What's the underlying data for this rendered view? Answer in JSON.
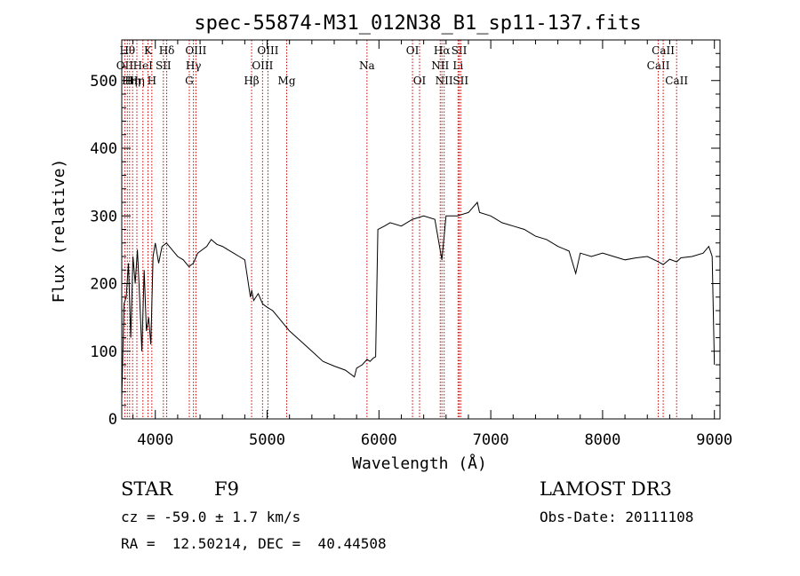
{
  "chart_data": {
    "type": "line",
    "title": "spec-55874-M31_012N38_B1_sp11-137.fits",
    "xlabel": "Wavelength (Å)",
    "ylabel": "Flux (relative)",
    "xlim": [
      3700,
      9050
    ],
    "ylim": [
      0,
      560
    ],
    "xticks": [
      4000,
      5000,
      6000,
      7000,
      8000,
      9000
    ],
    "yticks": [
      0,
      100,
      200,
      300,
      400,
      500
    ],
    "grid": false,
    "series": [
      {
        "name": "flux",
        "x": [
          3700,
          3720,
          3740,
          3760,
          3780,
          3800,
          3820,
          3840,
          3860,
          3880,
          3900,
          3920,
          3940,
          3960,
          3980,
          4000,
          4030,
          4060,
          4100,
          4150,
          4200,
          4250,
          4300,
          4340,
          4380,
          4420,
          4460,
          4500,
          4550,
          4600,
          4650,
          4700,
          4750,
          4800,
          4850,
          4862,
          4880,
          4920,
          4960,
          5000,
          5050,
          5100,
          5150,
          5200,
          5300,
          5400,
          5500,
          5600,
          5700,
          5780,
          5800,
          5850,
          5893,
          5920,
          5950,
          5970,
          5990,
          6050,
          6100,
          6200,
          6300,
          6400,
          6500,
          6563,
          6600,
          6700,
          6800,
          6880,
          6900,
          7000,
          7100,
          7200,
          7300,
          7400,
          7500,
          7600,
          7700,
          7760,
          7800,
          7900,
          8000,
          8100,
          8200,
          8300,
          8400,
          8500,
          8542,
          8600,
          8662,
          8700,
          8800,
          8900,
          8950,
          8980,
          9000
        ],
        "y": [
          30,
          170,
          180,
          230,
          120,
          240,
          200,
          250,
          180,
          100,
          220,
          130,
          150,
          110,
          240,
          260,
          230,
          255,
          260,
          250,
          240,
          235,
          225,
          230,
          245,
          250,
          255,
          265,
          258,
          255,
          250,
          245,
          240,
          235,
          180,
          190,
          175,
          185,
          170,
          165,
          160,
          150,
          140,
          130,
          115,
          100,
          85,
          78,
          72,
          62,
          75,
          80,
          88,
          85,
          90,
          92,
          280,
          285,
          290,
          285,
          295,
          300,
          295,
          235,
          300,
          300,
          305,
          320,
          305,
          300,
          290,
          285,
          280,
          270,
          265,
          255,
          248,
          215,
          245,
          240,
          245,
          240,
          235,
          238,
          240,
          232,
          228,
          236,
          232,
          238,
          240,
          245,
          255,
          240,
          80
        ]
      }
    ],
    "spectral_lines": [
      {
        "wl": 3727,
        "label": "OII",
        "row": 2
      },
      {
        "wl": 3750,
        "label": "Hθ",
        "row": 1
      },
      {
        "wl": 3770,
        "label": "Hη",
        "row": 3
      },
      {
        "wl": 3797,
        "label": "Hη",
        "row": 3
      },
      {
        "wl": 3835,
        "label": "Hη",
        "row": 3
      },
      {
        "wl": 3889,
        "label": "HeI",
        "row": 2
      },
      {
        "wl": 3934,
        "label": "K",
        "row": 1
      },
      {
        "wl": 3969,
        "label": "H",
        "row": 3
      },
      {
        "wl": 4072,
        "label": "SII",
        "row": 2
      },
      {
        "wl": 4102,
        "label": "Hδ",
        "row": 1
      },
      {
        "wl": 4304,
        "label": "G",
        "row": 3
      },
      {
        "wl": 4341,
        "label": "Hγ",
        "row": 2
      },
      {
        "wl": 4363,
        "label": "OIII",
        "row": 1
      },
      {
        "wl": 4861,
        "label": "Hβ",
        "row": 3
      },
      {
        "wl": 4959,
        "label": "OIII",
        "row": 2
      },
      {
        "wl": 5007,
        "label": "OIII",
        "row": 1
      },
      {
        "wl": 5175,
        "label": "Mg",
        "row": 3
      },
      {
        "wl": 5893,
        "label": "Na",
        "row": 2
      },
      {
        "wl": 6300,
        "label": "OI",
        "row": 1
      },
      {
        "wl": 6363,
        "label": "OI",
        "row": 3
      },
      {
        "wl": 6548,
        "label": "NII",
        "row": 2
      },
      {
        "wl": 6563,
        "label": "Hα",
        "row": 1
      },
      {
        "wl": 6583,
        "label": "NII",
        "row": 3
      },
      {
        "wl": 6707,
        "label": "Li",
        "row": 2
      },
      {
        "wl": 6717,
        "label": "SII",
        "row": 1
      },
      {
        "wl": 6731,
        "label": "SII",
        "row": 3
      },
      {
        "wl": 8498,
        "label": "CaII",
        "row": 2
      },
      {
        "wl": 8542,
        "label": "CaII",
        "row": 1
      },
      {
        "wl": 8662,
        "label": "CaII",
        "row": 3
      }
    ]
  },
  "info": {
    "object_class": "STAR",
    "subclass": "F9",
    "survey": "LAMOST DR3",
    "cz": "cz = -59.0 ± 1.7 km/s",
    "obs_date": "Obs-Date: 20111108",
    "coords": "RA =  12.50214, DEC =  40.44508"
  },
  "colors": {
    "line": "#000000",
    "marker": "#cc0000"
  }
}
